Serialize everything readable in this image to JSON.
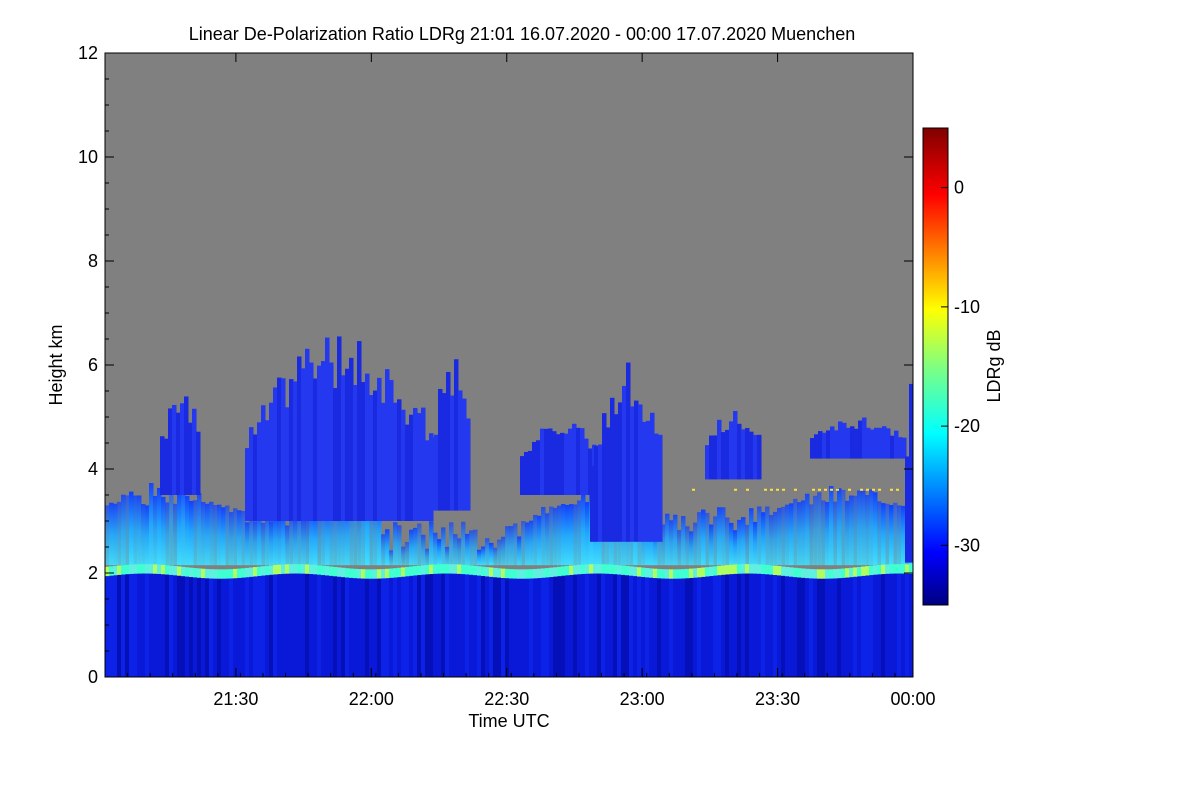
{
  "chart_data": {
    "type": "heatmap",
    "title": "Linear De-Polarization Ratio LDRg   21:01 16.07.2020 - 00:00 17.07.2020 Muenchen",
    "xlabel": "Time UTC",
    "ylabel": "Height km",
    "x_range": [
      "21:01",
      "00:00"
    ],
    "y_range": [
      0,
      12
    ],
    "x_ticks": [
      {
        "label": "21:30",
        "minutes": 29
      },
      {
        "label": "22:00",
        "minutes": 59
      },
      {
        "label": "22:30",
        "minutes": 89
      },
      {
        "label": "23:00",
        "minutes": 119
      },
      {
        "label": "23:30",
        "minutes": 149
      },
      {
        "label": "00:00",
        "minutes": 179
      }
    ],
    "y_ticks": [
      0,
      2,
      4,
      6,
      8,
      10,
      12
    ],
    "colorbar": {
      "label": "LDRg dB",
      "range": [
        -35,
        5
      ],
      "ticks": [
        {
          "label": "0",
          "value": 0
        },
        {
          "label": "-10",
          "value": -10
        },
        {
          "label": "-20",
          "value": -20
        },
        {
          "label": "-30",
          "value": -30
        }
      ],
      "colormap": "jet"
    },
    "background_color": "#808080",
    "layers": [
      {
        "description": "near-surface layer",
        "height_km": [
          0,
          2.0
        ],
        "ldr_db": -32
      },
      {
        "description": "depolarizing band",
        "height_km": [
          2.0,
          2.2
        ],
        "ldr_db": -18
      },
      {
        "description": "aerosol / cloud layer",
        "height_km": [
          2.2,
          3.5
        ],
        "ldr_db": -24
      },
      {
        "description": "cloud plumes",
        "height_km": [
          3.5,
          6.7
        ],
        "ldr_db": -30
      }
    ]
  }
}
